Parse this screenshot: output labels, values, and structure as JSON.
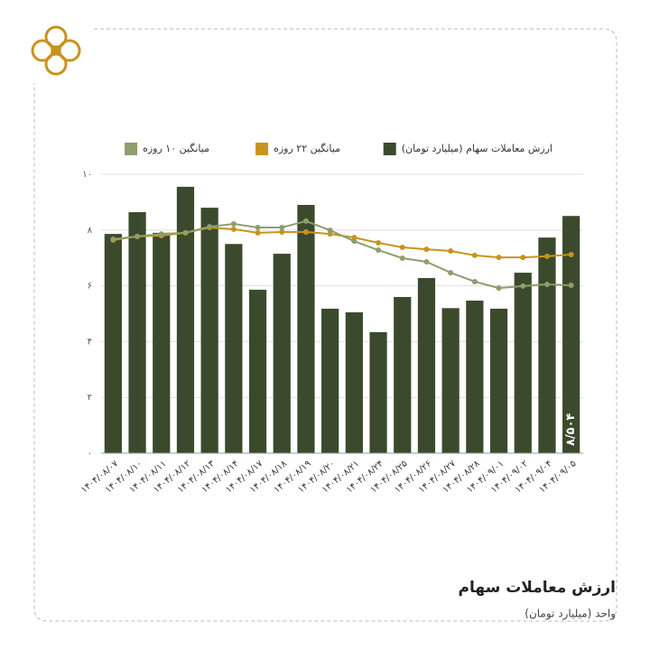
{
  "chart_data": {
    "type": "bar",
    "title": "ارزش معاملات سهام",
    "subtitle": "واحد (میلیارد تومان)",
    "categories": [
      "۱۴۰۴/۰۸/۰۷",
      "۱۴۰۴/۰۸/۱۰",
      "۱۴۰۴/۰۸/۱۱",
      "۱۴۰۴/۰۸/۱۲",
      "۱۴۰۴/۰۸/۱۳",
      "۱۴۰۴/۰۸/۱۴",
      "۱۴۰۴/۰۸/۱۷",
      "۱۴۰۴/۰۸/۱۸",
      "۱۴۰۴/۰۸/۱۹",
      "۱۴۰۴/۰۸/۲۰",
      "۱۴۰۴/۰۸/۲۱",
      "۱۴۰۴/۰۸/۲۴",
      "۱۴۰۴/۰۸/۲۵",
      "۱۴۰۴/۰۸/۲۶",
      "۱۴۰۴/۰۸/۲۷",
      "۱۴۰۴/۰۸/۲۸",
      "۱۴۰۴/۰۹/۰۱",
      "۱۴۰۴/۰۹/۰۲",
      "۱۴۰۴/۰۹/۰۴",
      "۱۴۰۴/۰۹/۰۵"
    ],
    "series": [
      {
        "name": "ارزش معاملات سهام (میلیارد تومان)",
        "type": "bar",
        "color": "#3b4a2c",
        "values": [
          7.86,
          8.64,
          7.9,
          9.55,
          8.8,
          7.5,
          5.86,
          7.15,
          8.9,
          5.18,
          5.05,
          4.34,
          5.6,
          6.28,
          5.2,
          5.47,
          5.18,
          6.47,
          7.73,
          8.504
        ],
        "value_labels": [
          null,
          null,
          null,
          null,
          null,
          null,
          null,
          null,
          null,
          null,
          null,
          null,
          null,
          null,
          null,
          null,
          null,
          null,
          null,
          "۸/۵۰۴"
        ]
      },
      {
        "name": "میانگین ۲۲ روزه",
        "type": "line",
        "color": "#c8941e",
        "values": [
          7.64,
          7.77,
          7.8,
          7.9,
          8.09,
          8.03,
          7.9,
          7.93,
          7.93,
          7.86,
          7.73,
          7.54,
          7.38,
          7.31,
          7.25,
          7.09,
          7.02,
          7.02,
          7.06,
          7.12
        ]
      },
      {
        "name": "میانگین ۱۰ روزه",
        "type": "line",
        "color": "#8e9e6c",
        "values": [
          7.67,
          7.77,
          7.86,
          7.9,
          8.12,
          8.22,
          8.09,
          8.09,
          8.32,
          7.99,
          7.6,
          7.28,
          6.99,
          6.86,
          6.47,
          6.15,
          5.92,
          5.99,
          6.05,
          6.02
        ]
      }
    ],
    "ylim": [
      0,
      10
    ],
    "yticks": [
      {
        "value": 0,
        "label": "۰"
      },
      {
        "value": 2,
        "label": "۲"
      },
      {
        "value": 4,
        "label": "۴"
      },
      {
        "value": 6,
        "label": "۶"
      },
      {
        "value": 8,
        "label": "۸"
      },
      {
        "value": 10,
        "label": "۱۰"
      }
    ],
    "grid": true
  }
}
